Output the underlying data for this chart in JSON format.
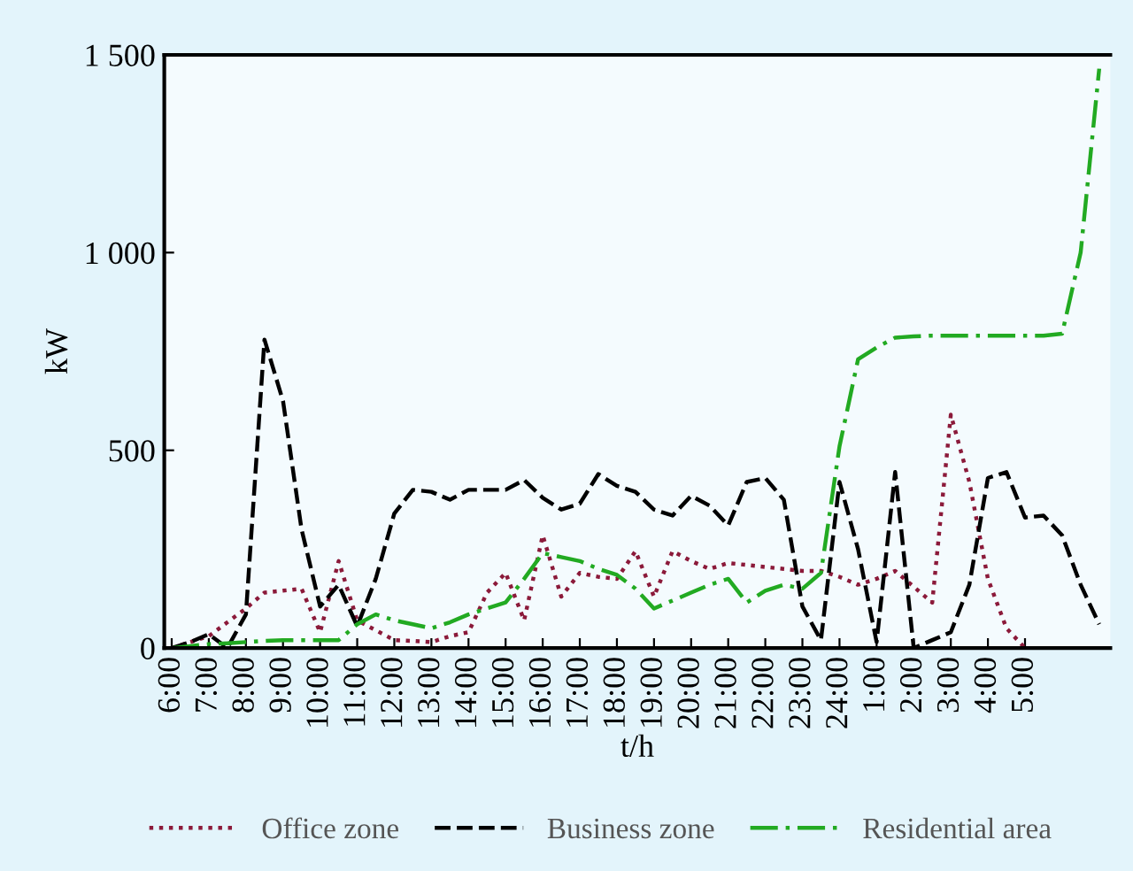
{
  "chart_data": {
    "type": "line",
    "xlabel": "t/h",
    "ylabel": "kW",
    "categories": [
      "6:00",
      null,
      "7:00",
      null,
      "8:00",
      null,
      "9:00",
      null,
      "10:00",
      null,
      "11:00",
      null,
      "12:00",
      null,
      "13:00",
      null,
      "14:00",
      null,
      "15:00",
      null,
      "16:00",
      null,
      "17:00",
      null,
      "18:00",
      null,
      "19:00",
      null,
      "20:00",
      null,
      "21:00",
      null,
      "22:00",
      null,
      "23:00",
      null,
      "24:00",
      null,
      "1:00",
      null,
      "2:00",
      null,
      "3:00",
      null,
      "4:00",
      null,
      "5:00",
      null,
      null,
      null,
      null
    ],
    "ylim": [
      0,
      1500
    ],
    "yticks": [
      0,
      500,
      {
        "value": 1000,
        "label": "1 000"
      },
      {
        "value": 1500,
        "label": "1 500"
      }
    ],
    "grid": false,
    "legend": "bottom",
    "marker": "none",
    "series": [
      {
        "name": "Office zone",
        "color": "#8b1a3a",
        "line_style": "dotted",
        "values": [
          0,
          15,
          30,
          65,
          100,
          140,
          145,
          150,
          40,
          220,
          70,
          45,
          20,
          18,
          15,
          30,
          40,
          140,
          190,
          70,
          285,
          130,
          190,
          180,
          175,
          245,
          130,
          245,
          220,
          200,
          215,
          210,
          205,
          200,
          195,
          195,
          180,
          160,
          175,
          195,
          155,
          115,
          590,
          420,
          175,
          50,
          0,
          null,
          null,
          null,
          null
        ]
      },
      {
        "name": "Business zone",
        "color": "#000000",
        "line_style": "dashed",
        "values": [
          0,
          15,
          35,
          0,
          85,
          780,
          625,
          300,
          105,
          160,
          55,
          175,
          340,
          400,
          395,
          375,
          400,
          400,
          400,
          425,
          380,
          350,
          365,
          440,
          410,
          395,
          350,
          335,
          385,
          360,
          310,
          420,
          430,
          375,
          105,
          20,
          420,
          250,
          15,
          445,
          0,
          20,
          40,
          160,
          430,
          445,
          330,
          335,
          285,
          160,
          60
        ]
      },
      {
        "name": "Residential area",
        "color": "#22aa22",
        "line_style": "dashdot",
        "values": [
          0,
          5,
          10,
          12,
          15,
          18,
          20,
          20,
          20,
          20,
          60,
          85,
          70,
          60,
          50,
          65,
          85,
          100,
          115,
          175,
          240,
          230,
          220,
          200,
          185,
          150,
          100,
          120,
          140,
          160,
          175,
          115,
          145,
          160,
          150,
          190,
          510,
          730,
          760,
          785,
          788,
          790,
          790,
          790,
          790,
          790,
          790,
          790,
          795,
          1000,
          1465
        ]
      }
    ]
  }
}
